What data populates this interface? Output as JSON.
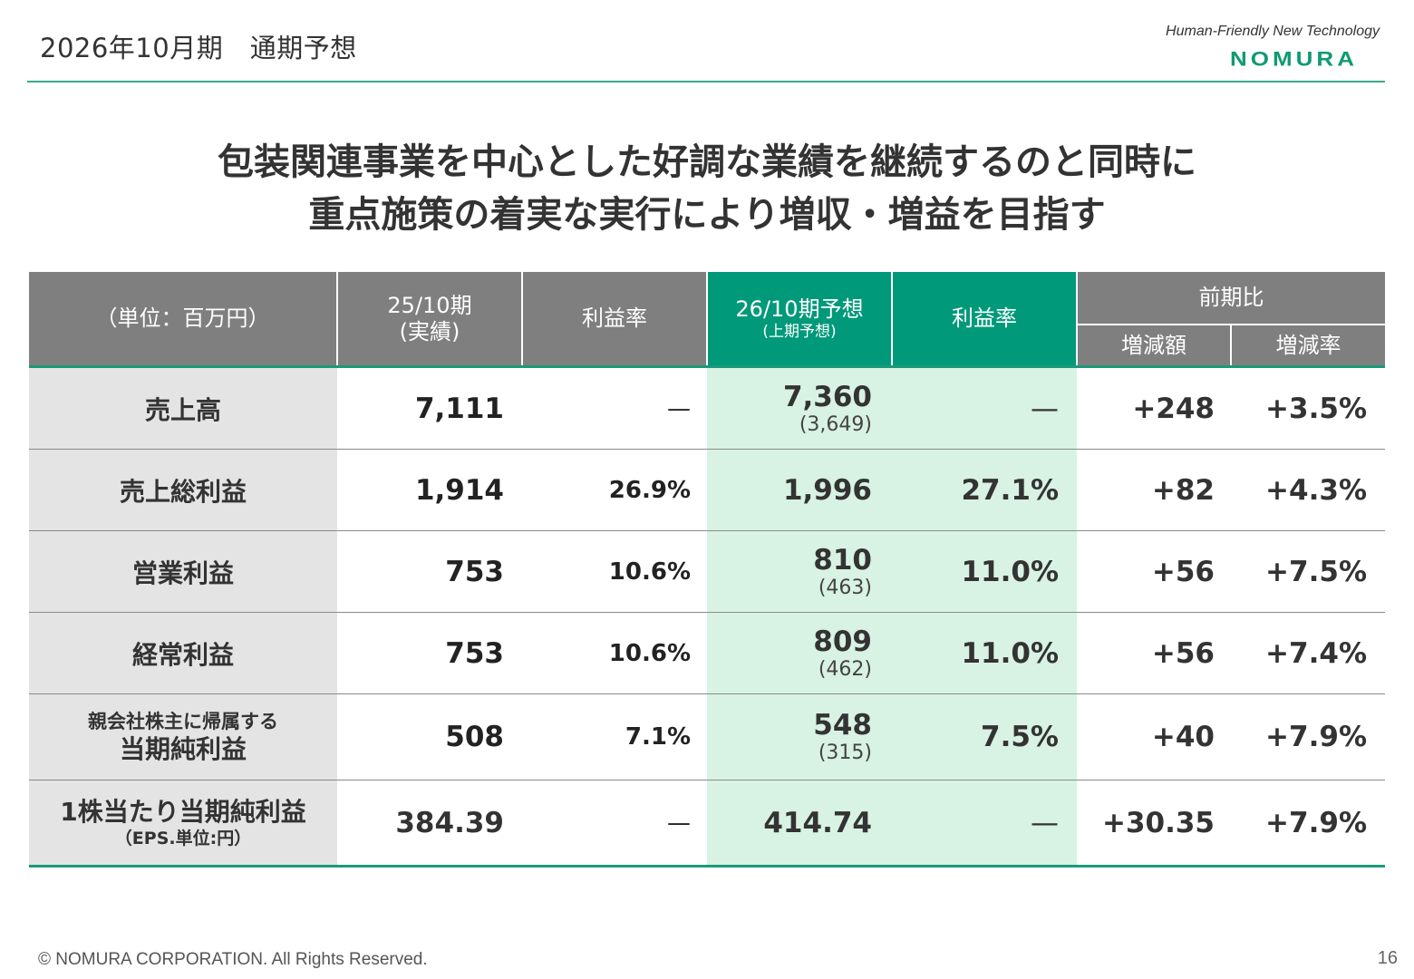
{
  "header": {
    "title": "2026年10月期　通期予想",
    "tagline": "Human-Friendly New Technology",
    "logo_text": "NOMURA"
  },
  "headline": {
    "line1": "包装関連事業を中心とした好調な業績を継続するのと同時に",
    "line2": "重点施策の着実な実行により増収・増益を目指す"
  },
  "table": {
    "headers": {
      "unit": "（単位：百万円）",
      "fy25_main": "25/10期",
      "fy25_sub": "(実績)",
      "margin_25": "利益率",
      "fy26_main": "26/10期予想",
      "fy26_sub": "(上期予想)",
      "margin_26": "利益率",
      "yoy": "前期比",
      "change_amount": "増減額",
      "change_rate": "増減率"
    },
    "rows": [
      {
        "label": "売上高",
        "fy25": "7,111",
        "margin25": "—",
        "fy26": "7,360",
        "fy26_h1": "(3,649)",
        "margin26": "—",
        "change": "+248",
        "rate": "+3.5%"
      },
      {
        "label": "売上総利益",
        "fy25": "1,914",
        "margin25": "26.9%",
        "fy26": "1,996",
        "fy26_h1": "",
        "margin26": "27.1%",
        "change": "+82",
        "rate": "+4.3%"
      },
      {
        "label": "営業利益",
        "fy25": "753",
        "margin25": "10.6%",
        "fy26": "810",
        "fy26_h1": "(463)",
        "margin26": "11.0%",
        "change": "+56",
        "rate": "+7.5%"
      },
      {
        "label": "経常利益",
        "fy25": "753",
        "margin25": "10.6%",
        "fy26": "809",
        "fy26_h1": "(462)",
        "margin26": "11.0%",
        "change": "+56",
        "rate": "+7.4%"
      },
      {
        "label_small": "親会社株主に帰属する",
        "label": "当期純利益",
        "fy25": "508",
        "margin25": "7.1%",
        "fy26": "548",
        "fy26_h1": "(315)",
        "margin26": "7.5%",
        "change": "+40",
        "rate": "+7.9%"
      },
      {
        "label": "1株当たり当期純利益",
        "label_note": "（EPS.単位:円）",
        "fy25": "384.39",
        "margin25": "—",
        "fy26": "414.74",
        "fy26_h1": "",
        "margin26": "—",
        "change": "+30.35",
        "rate": "+7.9%"
      }
    ]
  },
  "footer": {
    "copyright": "© NOMURA CORPORATION. All Rights Reserved.",
    "page": "16"
  },
  "colors": {
    "accent": "#00997a",
    "header_gray": "#7f7f7f",
    "forecast_fill": "#d8f2e3",
    "label_fill": "#e4e4e4"
  }
}
